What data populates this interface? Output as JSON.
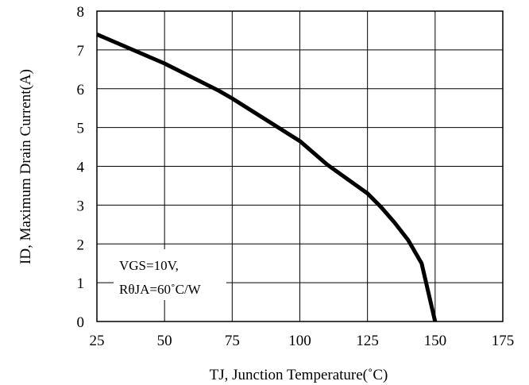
{
  "chart_data": {
    "type": "line",
    "xlabel": "TJ, Junction Temperature(˚C)",
    "ylabel": "ID, Maximum Drain Current(A)",
    "xlim": [
      25,
      175
    ],
    "ylim": [
      0,
      8
    ],
    "x_ticks": [
      "25",
      "50",
      "75",
      "100",
      "125",
      "150",
      "175"
    ],
    "y_ticks": [
      "0",
      "1",
      "2",
      "3",
      "4",
      "5",
      "6",
      "7",
      "8"
    ],
    "grid": true,
    "annotation": [
      "VGS=10V,",
      "RθJA=60˚C/W"
    ],
    "series": [
      {
        "x": [
          25,
          50,
          70,
          75,
          100,
          110,
          125,
          130,
          135,
          140,
          145,
          150
        ],
        "y": [
          7.4,
          6.65,
          5.95,
          5.75,
          4.65,
          4.05,
          3.3,
          2.95,
          2.55,
          2.1,
          1.5,
          0
        ]
      }
    ],
    "colors": {
      "line": "#000000",
      "grid": "#000000",
      "background": "#ffffff"
    }
  }
}
